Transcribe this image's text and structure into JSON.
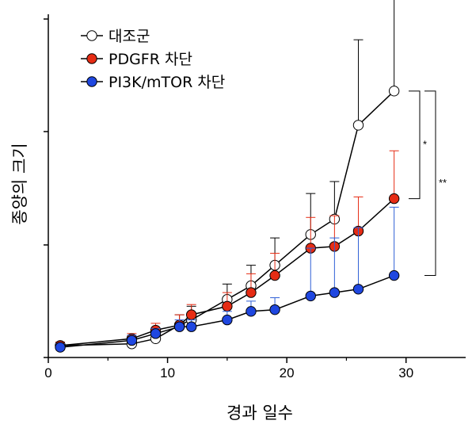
{
  "chart_data": {
    "type": "line",
    "xlabel": "경과 일수",
    "ylabel": "종양의 크기",
    "xlim": [
      0,
      35
    ],
    "ylim": [
      0,
      100
    ],
    "xticks": [
      0,
      10,
      20,
      30
    ],
    "y_tick_labels": "none",
    "legend_position": "top-left",
    "series": [
      {
        "name": "대조군",
        "color": "#000000",
        "fill": "#ffffff",
        "x": [
          1,
          7,
          9,
          11,
          12,
          15,
          17,
          19,
          22,
          24,
          26,
          29
        ],
        "y": [
          3.5,
          4,
          5.5,
          9.5,
          11,
          17,
          21,
          27,
          36,
          40.5,
          68,
          78
        ],
        "err": [
          1,
          1,
          1.5,
          3,
          4,
          4.5,
          6,
          8,
          12,
          11,
          25,
          28
        ]
      },
      {
        "name": "PDGFR 차단",
        "color": "#e62c14",
        "fill": "#e62c14",
        "x": [
          1,
          7,
          9,
          11,
          12,
          15,
          17,
          19,
          22,
          24,
          26,
          29
        ],
        "y": [
          3.5,
          5.5,
          8,
          9.5,
          12.5,
          15,
          19,
          24,
          32,
          32.5,
          37,
          46.5
        ],
        "err": [
          1,
          1.5,
          2,
          3,
          3,
          4,
          5.5,
          6.5,
          9,
          9,
          10,
          14
        ]
      },
      {
        "name": "PI3K/mTOR 차단",
        "color": "#2f5fd6",
        "fill": "#1f47e0",
        "x": [
          1,
          7,
          9,
          11,
          12,
          15,
          17,
          19,
          22,
          24,
          26,
          29
        ],
        "y": [
          3,
          5,
          7,
          9,
          9,
          11,
          13.5,
          14,
          18,
          19,
          20,
          24
        ],
        "err": [
          1,
          1.5,
          1.5,
          2,
          2,
          2.5,
          3,
          3.5,
          14,
          16,
          18,
          20
        ]
      }
    ],
    "annotations": [
      {
        "label": "*",
        "from_series": 0,
        "to_series": 1
      },
      {
        "label": "**",
        "from_series": 0,
        "to_series": 2
      }
    ]
  }
}
